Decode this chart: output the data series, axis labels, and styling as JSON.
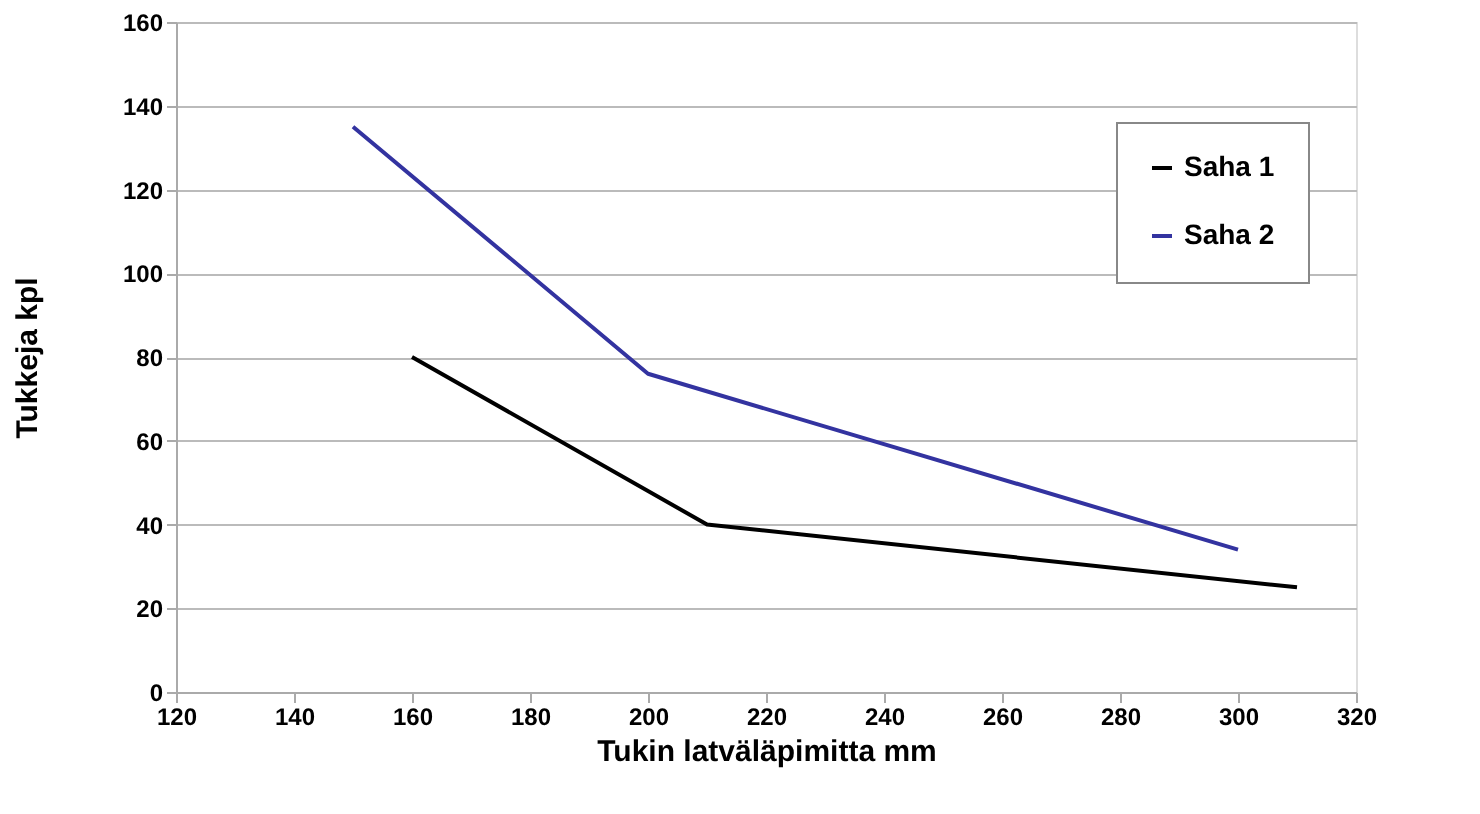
{
  "chart_data": {
    "type": "line",
    "xlabel": "Tukin latväläpimitta  mm",
    "ylabel": "Tukkeja  kpl",
    "xlim": [
      120,
      320
    ],
    "xticks": [
      120,
      140,
      160,
      180,
      200,
      220,
      240,
      260,
      280,
      300,
      320
    ],
    "ylim": [
      0,
      160
    ],
    "yticks": [
      0,
      20,
      40,
      60,
      80,
      100,
      120,
      140,
      160
    ],
    "grid": "y",
    "legend": "top right",
    "marker": "none",
    "line_style": "solid",
    "series": [
      {
        "name": "Saha 1",
        "color": "#000000",
        "x": [
          160,
          210,
          310
        ],
        "values": [
          80,
          40,
          25
        ]
      },
      {
        "name": "Saha 2",
        "color": "#3333a0",
        "x": [
          150,
          200,
          300
        ],
        "values": [
          135,
          76,
          34
        ]
      }
    ]
  }
}
